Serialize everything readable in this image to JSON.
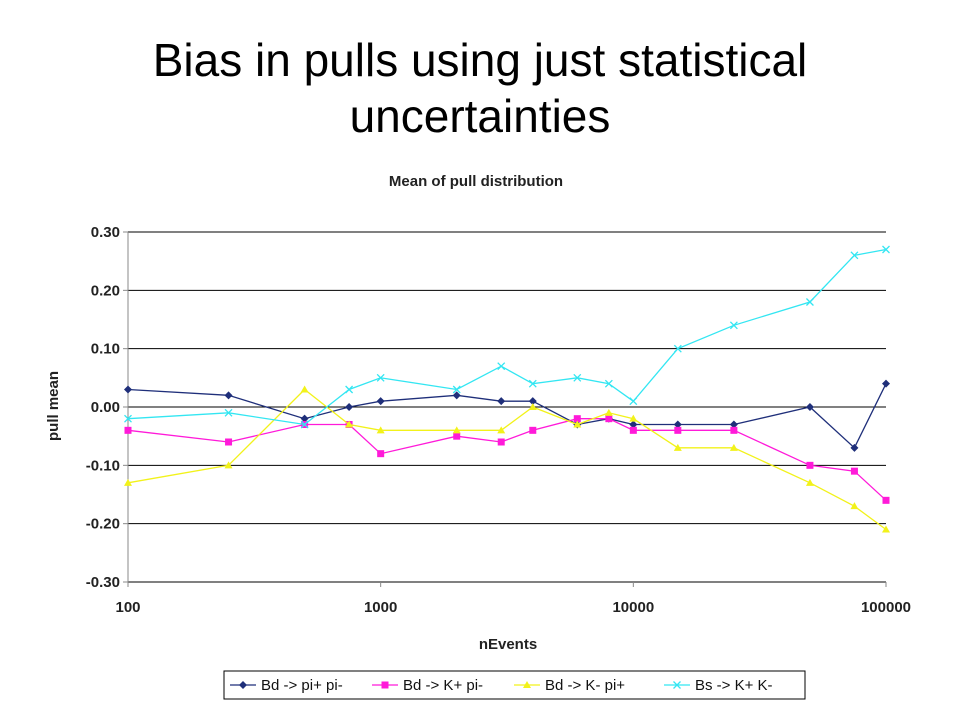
{
  "slide": {
    "title_line1": "Bias in pulls using just statistical",
    "title_line2": "uncertainties"
  },
  "chart_data": {
    "type": "line",
    "title": "Mean of pull distribution",
    "xlabel": "nEvents",
    "ylabel": "pull mean",
    "x_scale": "log",
    "xlim": [
      100,
      100000
    ],
    "ylim": [
      -0.3,
      0.3
    ],
    "x_ticks": [
      100,
      1000,
      10000,
      100000
    ],
    "x_tick_labels": [
      "100",
      "1000",
      "10000",
      "100000"
    ],
    "y_ticks": [
      0.3,
      0.2,
      0.1,
      0.0,
      -0.1,
      -0.2,
      -0.3
    ],
    "y_tick_labels": [
      "0.30",
      "0.20",
      "0.10",
      "0.00",
      "-0.10",
      "-0.20",
      "-0.30"
    ],
    "grid": "horizontal",
    "legend_position": "bottom",
    "x": [
      100,
      250,
      500,
      750,
      1000,
      2000,
      3000,
      4000,
      6000,
      8000,
      10000,
      15000,
      25000,
      50000,
      75000,
      100000
    ],
    "series": [
      {
        "name": "Bd -> pi+ pi-",
        "color": "#1f2f7a",
        "marker": "diamond",
        "values": [
          0.03,
          0.02,
          -0.02,
          0.0,
          0.01,
          0.02,
          0.01,
          0.01,
          -0.03,
          -0.02,
          -0.03,
          -0.03,
          -0.03,
          0.0,
          -0.07,
          0.04
        ]
      },
      {
        "name": "Bd -> K+ pi-",
        "color": "#ff1ad9",
        "marker": "square",
        "values": [
          -0.04,
          -0.06,
          -0.03,
          -0.03,
          -0.08,
          -0.05,
          -0.06,
          -0.04,
          -0.02,
          -0.02,
          -0.04,
          -0.04,
          -0.04,
          -0.1,
          -0.11,
          -0.16
        ]
      },
      {
        "name": "Bd -> K- pi+",
        "color": "#f2f21a",
        "marker": "triangle",
        "values": [
          -0.13,
          -0.1,
          0.03,
          -0.03,
          -0.04,
          -0.04,
          -0.04,
          0.0,
          -0.03,
          -0.01,
          -0.02,
          -0.07,
          -0.07,
          -0.13,
          -0.17,
          -0.21
        ]
      },
      {
        "name": "Bs -> K+ K-",
        "color": "#33e6f2",
        "marker": "x",
        "values": [
          -0.02,
          -0.01,
          -0.03,
          0.03,
          0.05,
          0.03,
          0.07,
          0.04,
          0.05,
          0.04,
          0.01,
          0.1,
          0.14,
          0.18,
          0.26,
          0.27
        ]
      }
    ]
  }
}
